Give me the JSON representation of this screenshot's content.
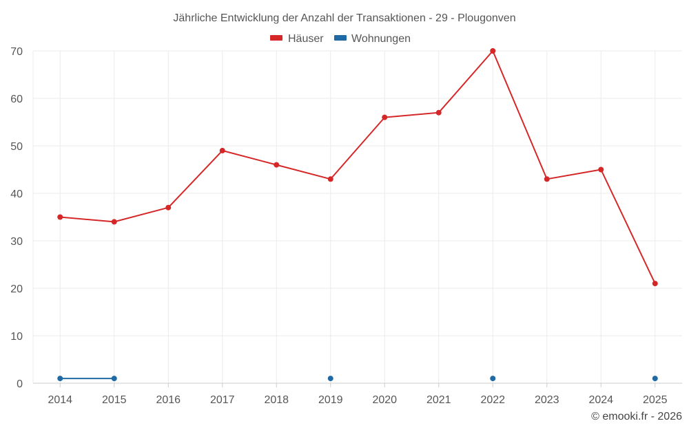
{
  "chart_data": {
    "type": "line",
    "title": "Jährliche Entwicklung der Anzahl der Transaktionen - 29 - Plougonven",
    "xlabel": "",
    "ylabel": "",
    "x": [
      "2014",
      "2015",
      "2016",
      "2017",
      "2018",
      "2019",
      "2020",
      "2021",
      "2022",
      "2023",
      "2024",
      "2025"
    ],
    "ylim": [
      0,
      70
    ],
    "yticks": [
      0,
      10,
      20,
      30,
      40,
      50,
      60,
      70
    ],
    "grid": true,
    "legend_position": "top-center",
    "series": [
      {
        "name": "Häuser",
        "color": "#d62728",
        "values": [
          35,
          34,
          37,
          49,
          46,
          43,
          56,
          57,
          70,
          43,
          45,
          21
        ]
      },
      {
        "name": "Wohnungen",
        "color": "#1f6aa5",
        "values": [
          1,
          1,
          null,
          null,
          null,
          1,
          null,
          null,
          1,
          null,
          null,
          1
        ]
      }
    ],
    "credit": "© emooki.fr - 2026"
  }
}
